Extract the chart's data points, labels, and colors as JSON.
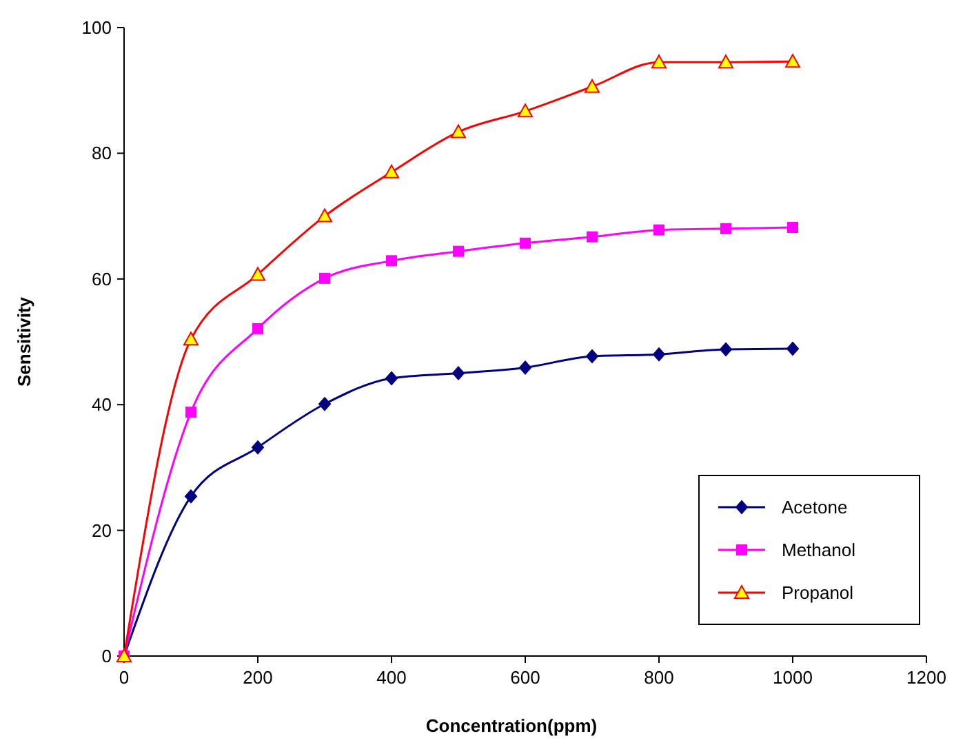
{
  "chart_data": {
    "type": "line",
    "xlabel": "Concentration(ppm)",
    "ylabel": "Sensitivity",
    "x": [
      0,
      100,
      200,
      300,
      400,
      500,
      600,
      700,
      800,
      900,
      1000
    ],
    "xlim": [
      0,
      1200
    ],
    "xticks": [
      0,
      200,
      400,
      600,
      800,
      1000,
      1200
    ],
    "ylim": [
      0,
      100
    ],
    "yticks": [
      0,
      20,
      40,
      60,
      80,
      100
    ],
    "grid": false,
    "legend": "bottom right",
    "series": [
      {
        "name": "Acetone",
        "color": "#000080",
        "marker": "diamond",
        "values": [
          0,
          25.4,
          33.2,
          40.1,
          44.2,
          45,
          45.9,
          47.7,
          48,
          48.8,
          48.9
        ]
      },
      {
        "name": "Methanol",
        "color": "#ff00ff",
        "marker": "square",
        "values": [
          0,
          38.8,
          52.1,
          60.1,
          62.9,
          64.4,
          65.7,
          66.7,
          67.8,
          68,
          68.2
        ]
      },
      {
        "name": "Propanol",
        "color": "#ff0000",
        "marker": "triangle",
        "values": [
          0,
          50.4,
          60.7,
          70,
          77,
          83.4,
          86.7,
          90.6,
          94.5,
          94.5,
          94.6
        ]
      }
    ]
  }
}
